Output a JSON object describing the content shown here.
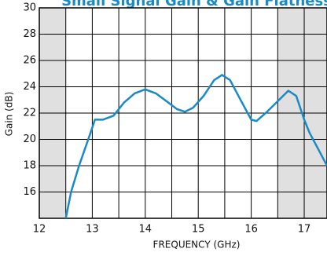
{
  "chart_data": {
    "type": "line",
    "title": "Small Signal Gain & Gain Flatness",
    "x_label": "FREQUENCY (GHz)",
    "y_label": "Gain (dB)",
    "xlim": [
      12,
      17.43
    ],
    "xticks": [
      12,
      13,
      14,
      15,
      16,
      17
    ],
    "ylim": [
      14,
      30
    ],
    "yticks": [
      16,
      18,
      20,
      22,
      24,
      26,
      28,
      30
    ],
    "grid": true,
    "shaded_ranges": [
      [
        12,
        12.5
      ],
      [
        16.5,
        17.43
      ]
    ],
    "series": [
      {
        "color": "#1a8ac6",
        "x": [
          12.5,
          12.6,
          12.75,
          12.95,
          13.05,
          13.2,
          13.4,
          13.6,
          13.8,
          14.0,
          14.2,
          14.4,
          14.6,
          14.75,
          14.9,
          15.1,
          15.3,
          15.45,
          15.6,
          15.8,
          16.0,
          16.1,
          16.3,
          16.5,
          16.7,
          16.85,
          17.0,
          17.1,
          17.3,
          17.43
        ],
        "values": [
          14.0,
          16.0,
          18.0,
          20.3,
          21.5,
          21.5,
          21.8,
          22.8,
          23.5,
          23.8,
          23.5,
          22.9,
          22.3,
          22.1,
          22.4,
          23.3,
          24.5,
          24.9,
          24.5,
          23.0,
          21.5,
          21.4,
          22.1,
          22.9,
          23.7,
          23.3,
          21.5,
          20.5,
          19.0,
          18.0
        ]
      }
    ]
  }
}
